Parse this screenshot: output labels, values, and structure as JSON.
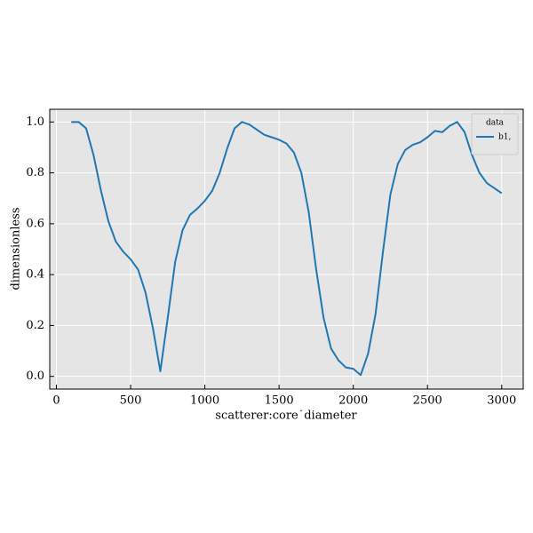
{
  "chart_data": {
    "type": "line",
    "xlabel": "scatterer:core˙diameter",
    "ylabel": "dimensionless",
    "x": [
      100,
      150,
      200,
      250,
      300,
      350,
      400,
      450,
      500,
      550,
      600,
      650,
      700,
      750,
      800,
      850,
      900,
      950,
      1000,
      1050,
      1100,
      1150,
      1200,
      1250,
      1300,
      1350,
      1400,
      1450,
      1500,
      1550,
      1600,
      1650,
      1700,
      1750,
      1800,
      1850,
      1900,
      1950,
      2000,
      2050,
      2100,
      2150,
      2200,
      2250,
      2300,
      2350,
      2400,
      2450,
      2500,
      2550,
      2600,
      2650,
      2700,
      2750,
      2800,
      2850,
      2900,
      2950,
      3000
    ],
    "series": [
      {
        "name": "b1,",
        "color": "#1f77b4",
        "values": [
          1.0,
          1.0,
          0.975,
          0.87,
          0.73,
          0.61,
          0.53,
          0.49,
          0.46,
          0.42,
          0.33,
          0.19,
          0.02,
          0.23,
          0.45,
          0.575,
          0.635,
          0.66,
          0.69,
          0.73,
          0.8,
          0.895,
          0.975,
          1.0,
          0.99,
          0.97,
          0.95,
          0.94,
          0.93,
          0.915,
          0.88,
          0.8,
          0.645,
          0.42,
          0.23,
          0.11,
          0.063,
          0.035,
          0.03,
          0.005,
          0.09,
          0.245,
          0.49,
          0.715,
          0.835,
          0.89,
          0.91,
          0.92,
          0.94,
          0.965,
          0.96,
          0.985,
          1.0,
          0.96,
          0.87,
          0.8,
          0.76,
          0.74,
          0.72
        ]
      }
    ],
    "legend_title": "data",
    "legend": "upper right",
    "grid": true,
    "xlim": [
      -45,
      3145
    ],
    "ylim": [
      -0.05,
      1.05
    ],
    "xticks": [
      0,
      500,
      1000,
      1500,
      2000,
      2500,
      3000
    ],
    "yticks": [
      {
        "value": 0,
        "label": "0.0"
      },
      {
        "value": 0.2,
        "label": "0.2"
      },
      {
        "value": 0.4,
        "label": "0.4"
      },
      {
        "value": 0.6,
        "label": "0.6"
      },
      {
        "value": 0.8,
        "label": "0.8"
      },
      {
        "value": 1,
        "label": "1.0"
      }
    ]
  }
}
